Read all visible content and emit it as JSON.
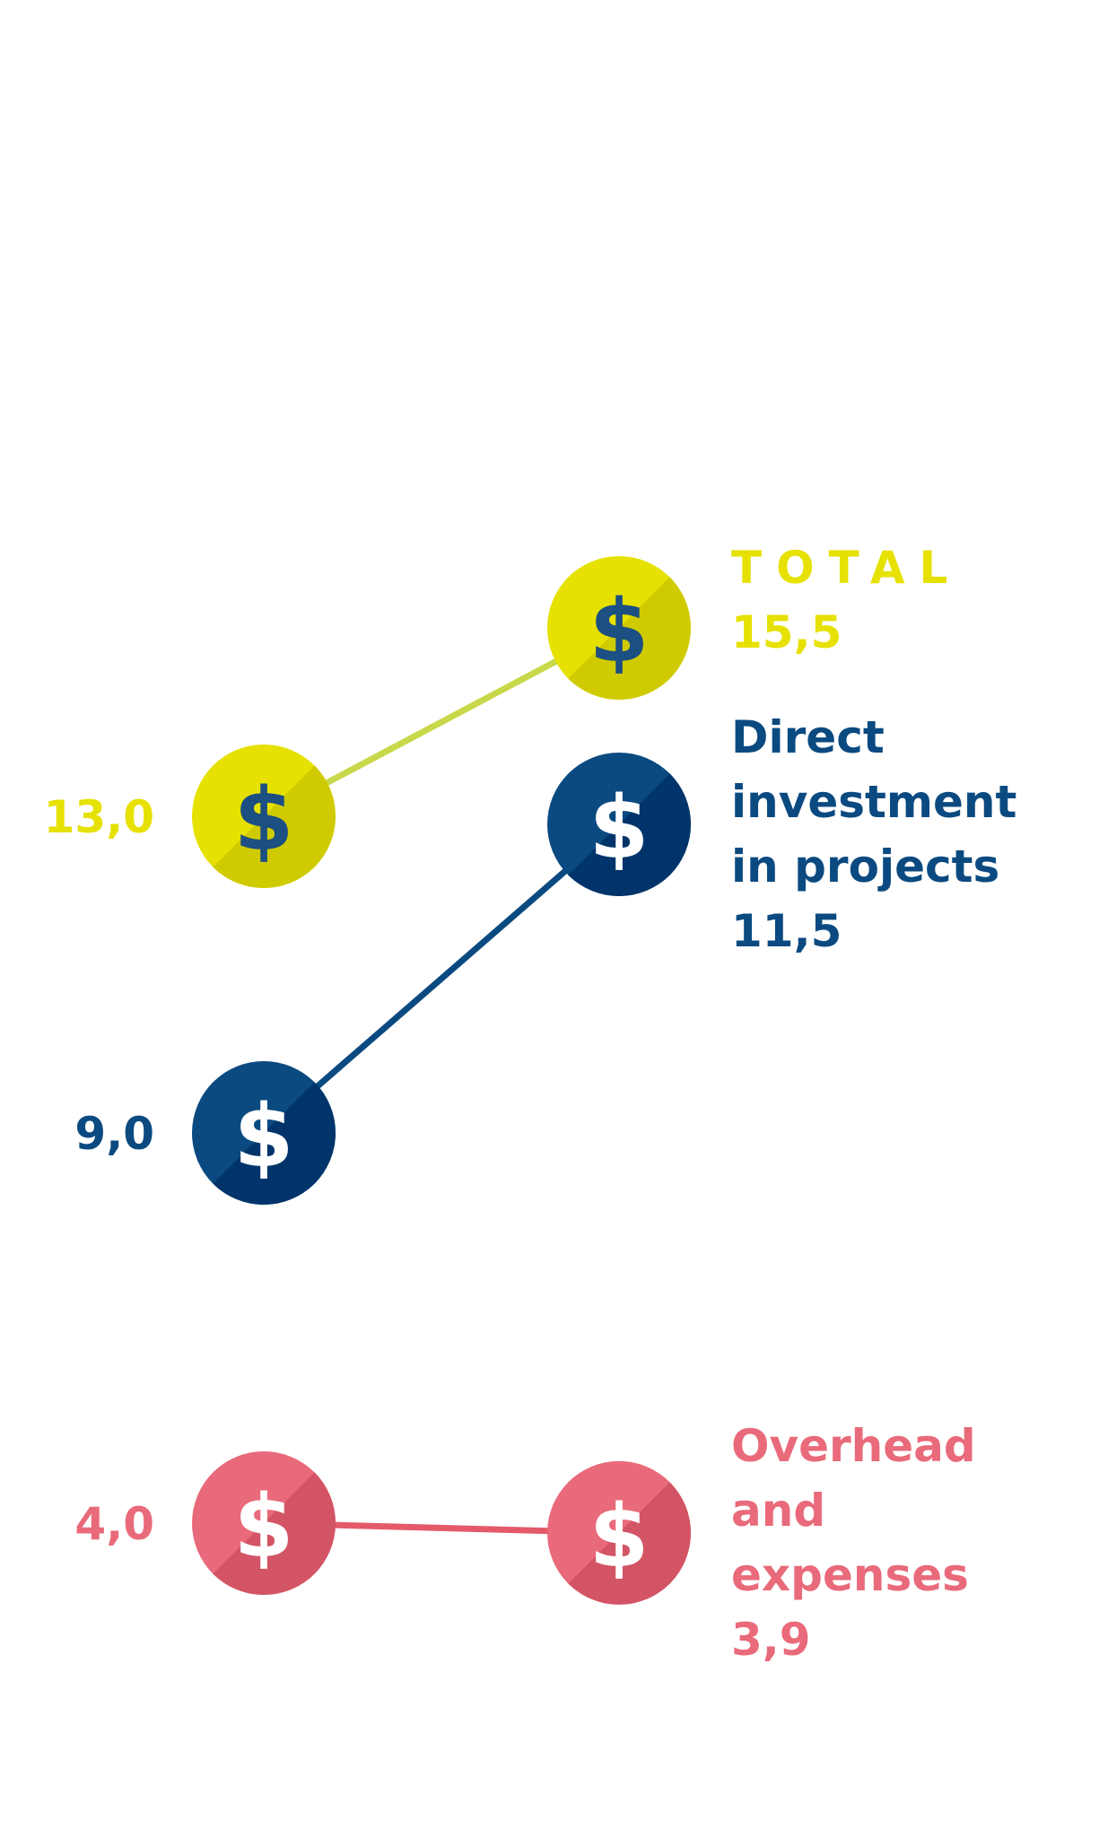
{
  "chart_data": {
    "type": "slope",
    "series": [
      {
        "name_lines": [
          "TOTAL"
        ],
        "start_value_label": "13,0",
        "end_value_label": "15,5",
        "start": 13.0,
        "end": 15.5,
        "color": "#e6e100",
        "line_color": "#c9d84a",
        "icon_color": "#1c4f82"
      },
      {
        "name_lines": [
          "Direct",
          "investment",
          "in projects"
        ],
        "start_value_label": "9,0",
        "end_value_label": "11,5",
        "start": 9.0,
        "end": 11.5,
        "color": "#0b4a80",
        "line_color": "#0b4a80",
        "icon_color": "#ffffff"
      },
      {
        "name_lines": [
          "Overhead",
          "and",
          "expenses"
        ],
        "start_value_label": "4,0",
        "end_value_label": "3,9",
        "start": 4.0,
        "end": 3.9,
        "color": "#e96a7a",
        "line_color": "#e45a6a",
        "icon_color": "#ffffff"
      }
    ],
    "icon": "dollar-icon",
    "icon_glyph": "$"
  }
}
